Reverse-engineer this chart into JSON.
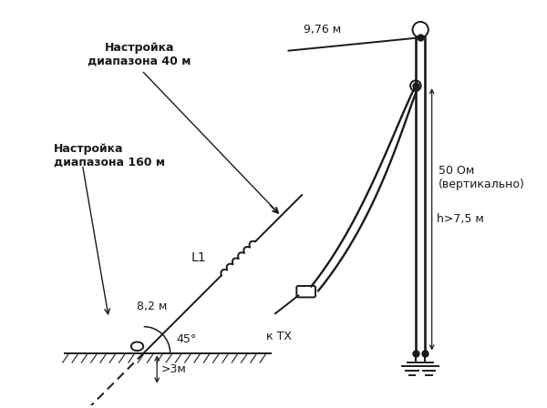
{
  "bg_color": "#ffffff",
  "line_color": "#1a1a1a",
  "text_color": "#1a1a1a",
  "labels": {
    "nastroyka_40": "Настройка\nдиапазона 40 м",
    "nastroyka_160": "Настройка\nдиапазона 160 м",
    "L1": "L1",
    "8_2m": "8,2 м",
    "45deg": "45°",
    "3m": ">3м",
    "9_76m": "9,76 м",
    "50ohm": "50 Ом\n(вертикально)",
    "h75m": "h>7,5 м",
    "kTX": "к ТХ"
  }
}
